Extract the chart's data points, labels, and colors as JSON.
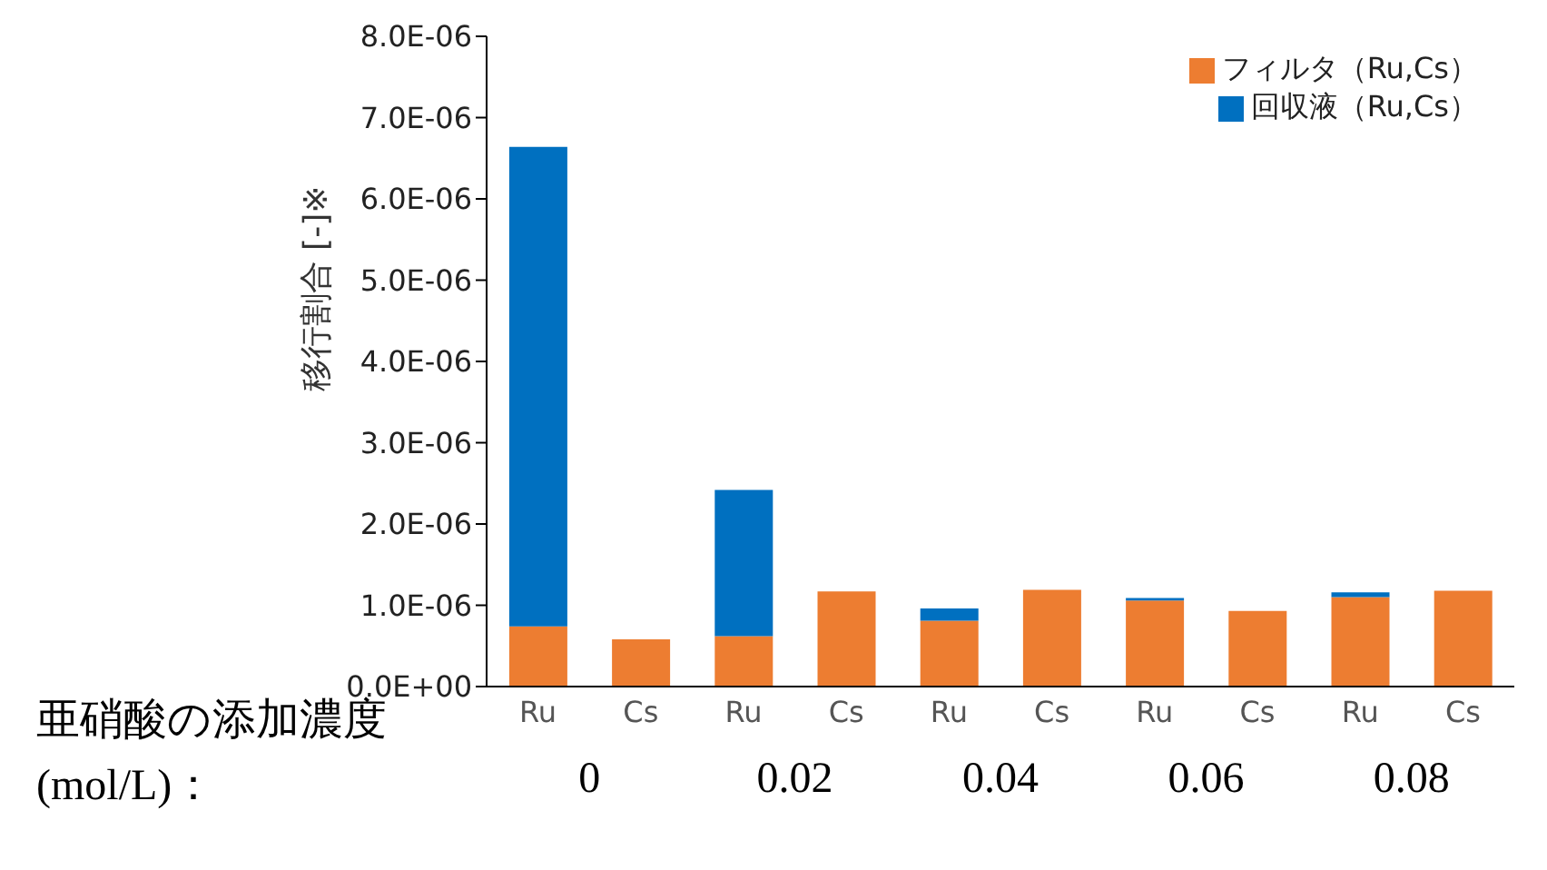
{
  "chart_data": {
    "type": "bar",
    "stacked": true,
    "ylabel": "移行割合 [-]※",
    "xlabel": "亜硝酸の添加濃度",
    "categories": [
      "Ru",
      "Cs",
      "Ru",
      "Cs",
      "Ru",
      "Cs",
      "Ru",
      "Cs",
      "Ru",
      "Cs"
    ],
    "series": [
      {
        "name": "フィルタ（Ru,Cs）",
        "color": "#ed7d31",
        "values": [
          7.4e-07,
          5.8e-07,
          6.2e-07,
          1.17e-06,
          8.1e-07,
          1.19e-06,
          1.06e-06,
          9.3e-07,
          1.1e-06,
          1.18e-06
        ]
      },
      {
        "name": "回収液（Ru,Cs）",
        "color": "#0070c0",
        "values": [
          5.9e-06,
          0,
          1.8e-06,
          0,
          1.5e-07,
          0,
          3e-08,
          0,
          6e-08,
          0
        ]
      }
    ],
    "ylim": [
      0,
      8e-06
    ],
    "yticks": [
      {
        "value": 0,
        "label": "0.0E+00"
      },
      {
        "value": 1e-06,
        "label": "1.0E-06"
      },
      {
        "value": 2e-06,
        "label": "2.0E-06"
      },
      {
        "value": 3e-06,
        "label": "3.0E-06"
      },
      {
        "value": 4e-06,
        "label": "4.0E-06"
      },
      {
        "value": 5e-06,
        "label": "5.0E-06"
      },
      {
        "value": 6e-06,
        "label": "6.0E-06"
      },
      {
        "value": 7e-06,
        "label": "7.0E-06"
      },
      {
        "value": 8e-06,
        "label": "8.0E-06"
      }
    ],
    "annotations": [
      "(mol/L)：",
      "0",
      "0.02",
      "0.04",
      "0.06",
      "0.08"
    ],
    "legend": "top right",
    "grid": false
  }
}
